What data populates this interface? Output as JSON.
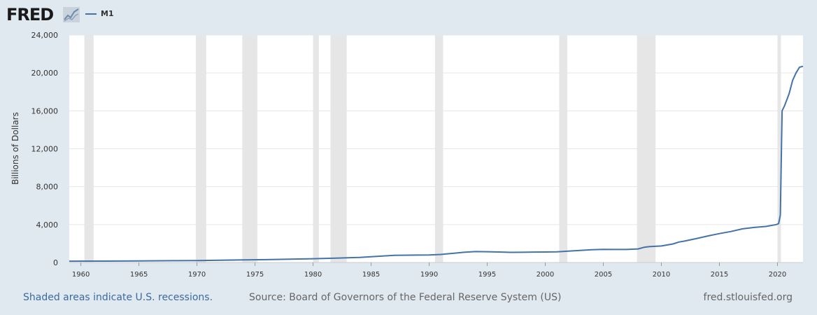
{
  "header": {
    "logo_text": "FRED",
    "logo_icon": "chart-line-icon",
    "legend_series": "M1",
    "series_color": "#4572a7"
  },
  "footer": {
    "recession_note": "Shaded areas indicate U.S. recessions.",
    "source": "Source: Board of Governors of the Federal Reserve System (US)",
    "site": "fred.stlouisfed.org"
  },
  "chart_data": {
    "type": "line",
    "title": "",
    "xlabel": "",
    "ylabel": "Billions of Dollars",
    "xlim": [
      1959.0,
      2022.2
    ],
    "ylim": [
      0,
      24000
    ],
    "x_ticks": [
      1960,
      1965,
      1970,
      1975,
      1980,
      1985,
      1990,
      1995,
      2000,
      2005,
      2010,
      2015,
      2020
    ],
    "y_ticks": [
      0,
      4000,
      8000,
      12000,
      16000,
      20000,
      24000
    ],
    "y_tick_labels": [
      "0",
      "4,000",
      "8,000",
      "12,000",
      "16,000",
      "20,000",
      "24,000"
    ],
    "grid": "horizontal",
    "recessions": [
      [
        1960.3,
        1961.1
      ],
      [
        1969.9,
        1970.8
      ],
      [
        1973.9,
        1975.2
      ],
      [
        1980.0,
        1980.5
      ],
      [
        1981.5,
        1982.9
      ],
      [
        1990.5,
        1991.2
      ],
      [
        2001.2,
        2001.9
      ],
      [
        2007.9,
        2009.5
      ],
      [
        2020.0,
        2020.3
      ]
    ],
    "series": [
      {
        "name": "M1",
        "color": "#4572a7",
        "x": [
          1959.0,
          1962.0,
          1965.0,
          1968.0,
          1970.0,
          1972.0,
          1974.0,
          1976.0,
          1978.0,
          1980.0,
          1982.0,
          1984.0,
          1986.0,
          1987.0,
          1989.0,
          1990.0,
          1991.0,
          1992.0,
          1993.0,
          1994.0,
          1995.0,
          1996.0,
          1997.0,
          1998.0,
          1999.0,
          2000.0,
          2001.0,
          2002.0,
          2003.0,
          2004.0,
          2005.0,
          2006.0,
          2007.0,
          2008.0,
          2008.5,
          2009.0,
          2010.0,
          2011.0,
          2011.5,
          2012.0,
          2013.0,
          2014.0,
          2015.0,
          2016.0,
          2017.0,
          2018.0,
          2019.0,
          2019.9,
          2020.1,
          2020.25,
          2020.4,
          2020.6,
          2021.0,
          2021.3,
          2021.6,
          2021.9,
          2022.2
        ],
        "values": [
          140,
          145,
          170,
          190,
          210,
          240,
          270,
          300,
          350,
          400,
          460,
          540,
          690,
          750,
          780,
          800,
          850,
          960,
          1080,
          1150,
          1140,
          1110,
          1070,
          1080,
          1100,
          1110,
          1120,
          1200,
          1270,
          1350,
          1380,
          1370,
          1370,
          1430,
          1600,
          1680,
          1740,
          1960,
          2160,
          2260,
          2520,
          2800,
          3050,
          3270,
          3550,
          3700,
          3800,
          4000,
          4100,
          5000,
          16000,
          16500,
          17800,
          19200,
          20000,
          20600,
          20700
        ]
      }
    ]
  }
}
